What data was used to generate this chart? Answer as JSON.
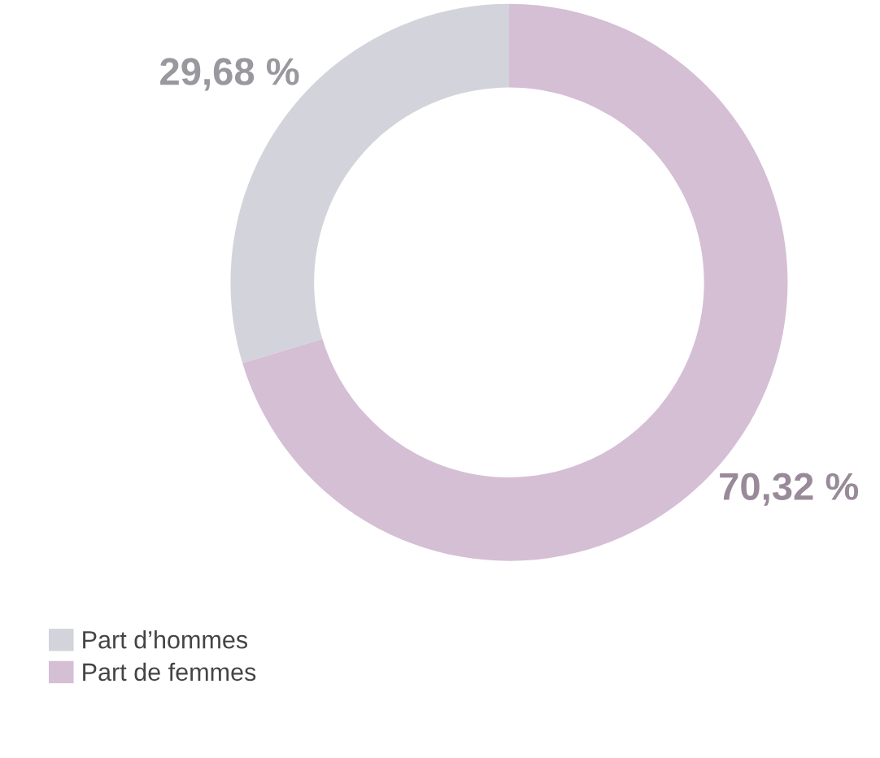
{
  "chart_data": {
    "type": "donut",
    "categories": [
      "Part d’hommes",
      "Part de femmes"
    ],
    "values": [
      29.68,
      70.32
    ],
    "colors": [
      "#d3d3dc",
      "#d5bfd5"
    ],
    "value_labels": [
      "29,68 %",
      "70,32 %"
    ],
    "legend": "bottom left"
  }
}
